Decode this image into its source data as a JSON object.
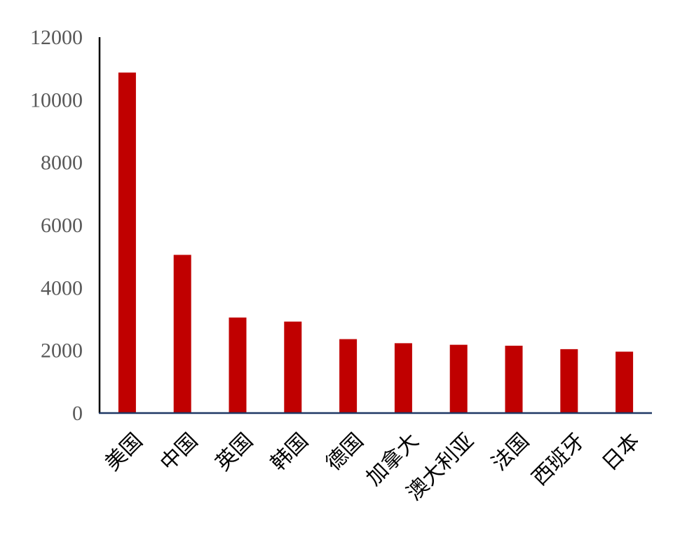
{
  "chart_data": {
    "type": "bar",
    "title": "",
    "xlabel": "",
    "ylabel": "",
    "categories": [
      "美国",
      "中国",
      "英国",
      "韩国",
      "德国",
      "加拿大",
      "澳大利亚",
      "法国",
      "西班牙",
      "日本"
    ],
    "values": [
      10870,
      5050,
      3050,
      2920,
      2360,
      2230,
      2180,
      2150,
      2040,
      1960
    ],
    "ylim": [
      0,
      12000
    ],
    "yticks": [
      "0",
      "2000",
      "4000",
      "6000",
      "8000",
      "10000",
      "12000"
    ],
    "bar_color": "#C00000",
    "axis_color": "#1F3864",
    "grid": false,
    "legend": "none"
  }
}
